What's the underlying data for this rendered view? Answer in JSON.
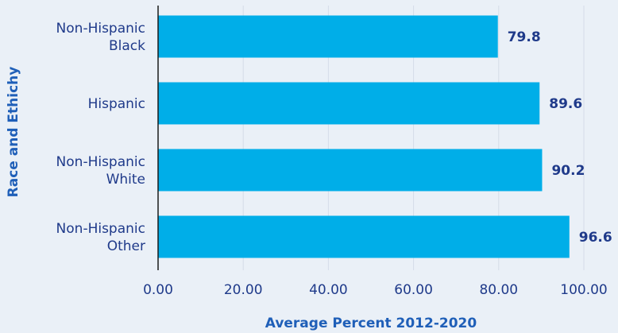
{
  "chart_data": {
    "type": "bar",
    "orientation": "horizontal",
    "categories": [
      "Non-Hispanic Black",
      "Hispanic",
      "Non-Hispanic White",
      "Non-Hispanic Other"
    ],
    "category_label_lines": [
      [
        "Non-Hispanic",
        "Black"
      ],
      [
        "Hispanic"
      ],
      [
        "Non-Hispanic",
        "White"
      ],
      [
        "Non-Hispanic",
        "Other"
      ]
    ],
    "values": [
      79.8,
      89.6,
      90.2,
      96.6
    ],
    "value_labels": [
      "79.8",
      "89.6",
      "90.2",
      "96.6"
    ],
    "xlabel": "Average Percent 2012-2020",
    "ylabel": "Race and Ethichy",
    "xlim": [
      0,
      100
    ],
    "xticks": [
      0,
      20,
      40,
      60,
      80,
      100
    ],
    "xtick_labels": [
      "0.00",
      "20.00",
      "40.00",
      "60.00",
      "80.00",
      "100.00"
    ],
    "grid": "vertical",
    "legend": "none",
    "colors": {
      "bar": "#00aee8",
      "label": "#1f3a8a",
      "axis_title": "#1f5fb8",
      "grid": "#d5dde8",
      "background": "#eaf0f7"
    }
  }
}
